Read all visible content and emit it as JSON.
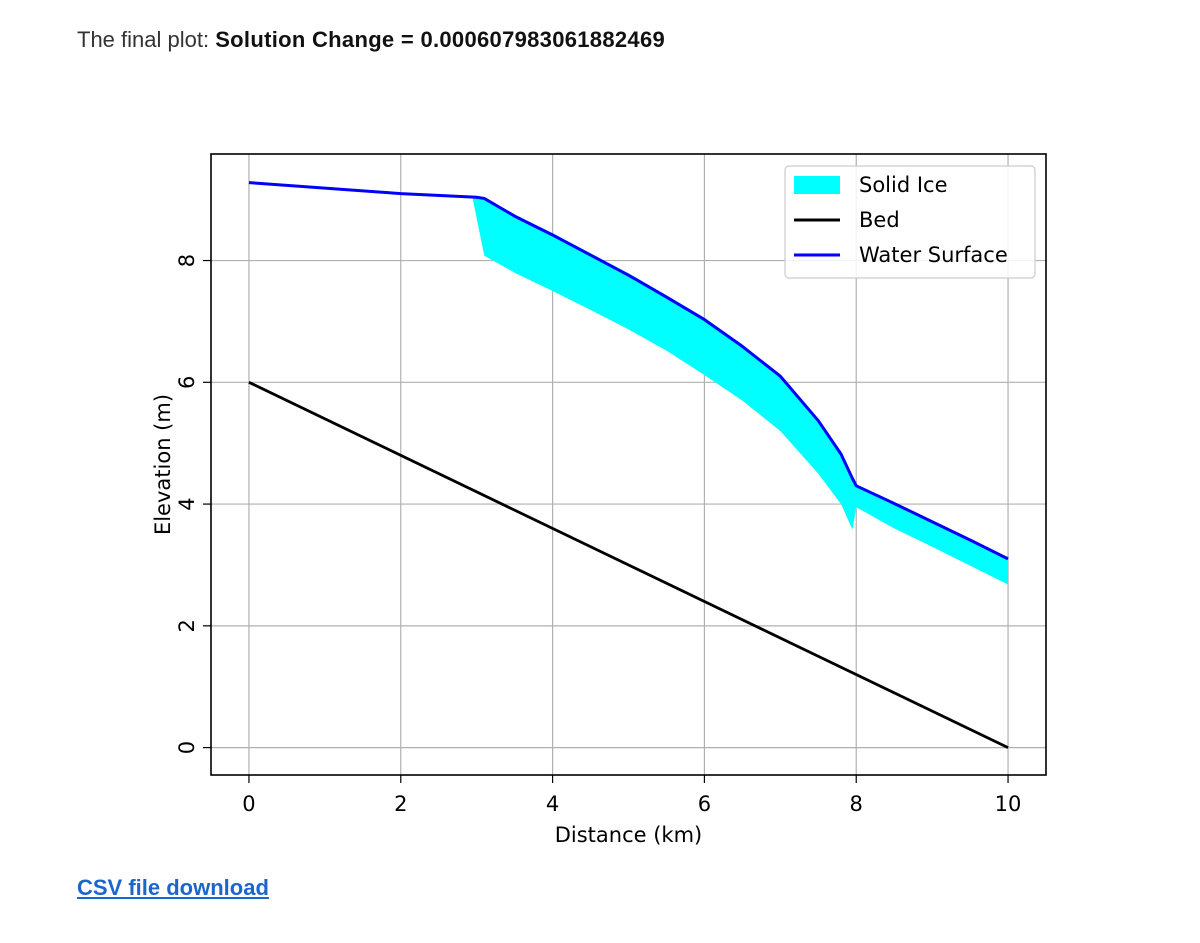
{
  "header": {
    "label": "The final plot:",
    "value": "Solution Change = 0.000607983061882469"
  },
  "link": {
    "label": "CSV file download"
  },
  "chart_data": {
    "type": "line",
    "title": "",
    "xlabel": "Distance (km)",
    "ylabel": "Elevation (m)",
    "xlim": [
      -0.5,
      10.5
    ],
    "ylim": [
      -0.45,
      9.75
    ],
    "xticks": [
      0,
      2,
      4,
      6,
      8,
      10
    ],
    "yticks": [
      0,
      2,
      4,
      6,
      8
    ],
    "grid": true,
    "legend_position": "top-right",
    "legend": [
      "Solid Ice",
      "Bed",
      "Water Surface"
    ],
    "series": [
      {
        "name": "Bed",
        "kind": "line",
        "color": "#000000",
        "x": [
          0,
          10
        ],
        "y": [
          6,
          0
        ]
      },
      {
        "name": "Water Surface",
        "kind": "line",
        "color": "#0000ff",
        "x": [
          0,
          1,
          2,
          3,
          3.1,
          3.5,
          4,
          4.5,
          5,
          5.5,
          6,
          6.5,
          7,
          7.5,
          7.8,
          7.95,
          8.0,
          8.5,
          9,
          9.5,
          10
        ],
        "y": [
          9.28,
          9.19,
          9.1,
          9.04,
          9.02,
          8.73,
          8.42,
          8.09,
          7.76,
          7.4,
          7.03,
          6.59,
          6.1,
          5.37,
          4.82,
          4.42,
          4.3,
          4.01,
          3.71,
          3.41,
          3.1
        ]
      },
      {
        "name": "Solid Ice",
        "kind": "area",
        "color": "#00ffff",
        "x": [
          2.95,
          3.1,
          3.5,
          4,
          4.5,
          5,
          5.5,
          6,
          6.5,
          7,
          7.5,
          7.8,
          7.95,
          8.0,
          8.5,
          9,
          9.5,
          10
        ],
        "top": [
          9.04,
          9.04,
          8.75,
          8.45,
          8.12,
          7.79,
          7.43,
          7.06,
          6.62,
          6.12,
          5.39,
          4.84,
          4.44,
          4.31,
          4.02,
          3.72,
          3.42,
          3.1
        ],
        "bottom": [
          9.0,
          8.08,
          7.8,
          7.5,
          7.19,
          6.87,
          6.52,
          6.12,
          5.7,
          5.2,
          4.5,
          4.0,
          3.58,
          3.95,
          3.6,
          3.3,
          2.99,
          2.68
        ]
      }
    ]
  }
}
